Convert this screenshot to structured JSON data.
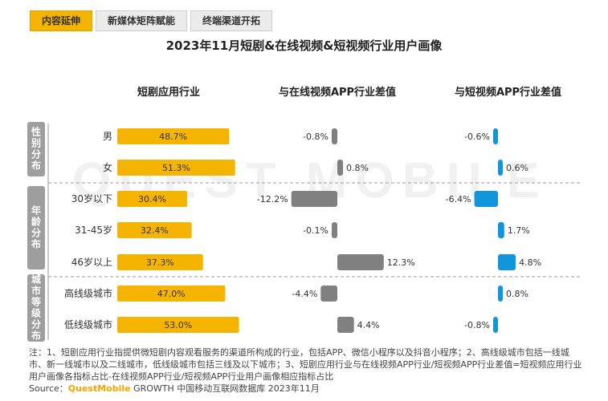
{
  "tabs": [
    "内容延伸",
    "新媒体矩阵赋能",
    "终端渠道开拓"
  ],
  "title": "2023年11月短剧&在线视频&短视频行业用户画像",
  "watermark": "QUEST MOBILE",
  "colors": {
    "primary": "#f5b400",
    "online_video": "#808080",
    "short_video": "#1296db",
    "group_label_bg": "#9e9e9e"
  },
  "groups": [
    {
      "label": "性别分布",
      "rows": [
        0,
        1
      ]
    },
    {
      "label": "年龄分布",
      "rows": [
        2,
        3,
        4
      ]
    },
    {
      "label": "城市等级分布",
      "rows": [
        5,
        6
      ]
    }
  ],
  "chart_data": {
    "type": "bar",
    "categories": [
      "男",
      "女",
      "30岁以下",
      "31-45岁",
      "46岁以上",
      "高线级城市",
      "低线级城市"
    ],
    "series": [
      {
        "name": "短剧应用行业",
        "values": [
          48.7,
          51.3,
          30.4,
          32.4,
          37.3,
          47.0,
          53.0
        ],
        "labels": [
          "48.7%",
          "51.3%",
          "30.4%",
          "32.4%",
          "37.3%",
          "47.0%",
          "53.0%"
        ]
      },
      {
        "name": "与在线视频APP行业差值",
        "values": [
          -0.8,
          0.8,
          -12.2,
          -0.1,
          12.3,
          -4.4,
          4.4
        ],
        "labels": [
          "-0.8%",
          "0.8%",
          "-12.2%",
          "-0.1%",
          "12.3%",
          "-4.4%",
          "4.4%"
        ]
      },
      {
        "name": "与短视频APP行业差值",
        "values": [
          -0.6,
          0.6,
          -6.4,
          1.7,
          4.8,
          0.8,
          -0.8
        ],
        "labels": [
          "-0.6%",
          "0.6%",
          "-6.4%",
          "1.7%",
          "4.8%",
          "0.8%",
          "-0.8%"
        ]
      }
    ]
  },
  "note": "注：1、短剧应用行业指提供微短剧内容观看服务的渠道所构成的行业，包括APP、微信小程序以及抖音小程序；2、高线级城市包括一线城市、新一线城市以及二线城市，低线级城市包括三线及以下城市；3、短剧应用行业与在线视频APP行业/短视频APP行业差值=短视频应用行业用户画像各指标占比-在线视频APP行业/短视频APP行业用户画像相应指标占比",
  "source": {
    "prefix": "Source：",
    "brand": "QuestMobile",
    "rest": " GROWTH 中国移动互联网数据库 2023年11月"
  }
}
